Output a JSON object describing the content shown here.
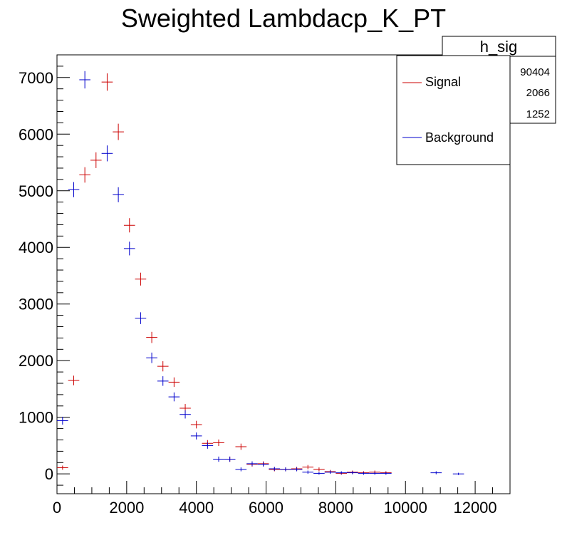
{
  "chart_data": {
    "type": "scatter",
    "title": "Sweighted Lambdacp_K_PT",
    "xlabel": "",
    "ylabel": "",
    "xlim": [
      0,
      13000
    ],
    "ylim": [
      -350,
      7400
    ],
    "x_ticks": [
      0,
      2000,
      4000,
      6000,
      8000,
      10000,
      12000
    ],
    "y_ticks": [
      0,
      1000,
      2000,
      3000,
      4000,
      5000,
      6000,
      7000
    ],
    "x_tick_labels": [
      "0",
      "2000",
      "4000",
      "6000",
      "8000",
      "10000",
      "12000"
    ],
    "y_tick_labels": [
      "0",
      "1000",
      "2000",
      "3000",
      "4000",
      "5000",
      "6000",
      "7000"
    ],
    "grid": false,
    "legend_position": "top-right",
    "colors": {
      "Signal": "#cc0000",
      "Background": "#0000cc"
    },
    "series": [
      {
        "name": "Signal",
        "half_width": 160,
        "points": [
          [
            160,
            110
          ],
          [
            480,
            1650
          ],
          [
            800,
            5280
          ],
          [
            1120,
            5540
          ],
          [
            1440,
            6920
          ],
          [
            1760,
            6040
          ],
          [
            2080,
            4390
          ],
          [
            2400,
            3440
          ],
          [
            2720,
            2410
          ],
          [
            3040,
            1900
          ],
          [
            3360,
            1620
          ],
          [
            3680,
            1160
          ],
          [
            4000,
            870
          ],
          [
            4320,
            540
          ],
          [
            4640,
            550
          ],
          [
            4960,
            260
          ],
          [
            5280,
            480
          ],
          [
            5600,
            170
          ],
          [
            5920,
            180
          ],
          [
            6240,
            80
          ],
          [
            6560,
            80
          ],
          [
            6880,
            90
          ],
          [
            7200,
            120
          ],
          [
            7520,
            80
          ],
          [
            7840,
            40
          ],
          [
            8160,
            10
          ],
          [
            8480,
            30
          ],
          [
            8800,
            20
          ],
          [
            9120,
            30
          ],
          [
            9440,
            20
          ]
        ]
      },
      {
        "name": "Background",
        "half_width": 160,
        "points": [
          [
            160,
            940
          ],
          [
            480,
            5020
          ],
          [
            800,
            6960
          ],
          [
            1440,
            5660
          ],
          [
            1760,
            4930
          ],
          [
            2080,
            3980
          ],
          [
            2400,
            2750
          ],
          [
            2720,
            2050
          ],
          [
            3040,
            1640
          ],
          [
            3360,
            1360
          ],
          [
            3680,
            1050
          ],
          [
            4000,
            670
          ],
          [
            4320,
            500
          ],
          [
            4640,
            260
          ],
          [
            4960,
            260
          ],
          [
            5280,
            80
          ],
          [
            5600,
            180
          ],
          [
            5920,
            170
          ],
          [
            6240,
            90
          ],
          [
            6560,
            80
          ],
          [
            6880,
            80
          ],
          [
            7200,
            30
          ],
          [
            7520,
            10
          ],
          [
            7840,
            30
          ],
          [
            8160,
            20
          ],
          [
            8480,
            20
          ],
          [
            8800,
            10
          ],
          [
            9120,
            10
          ],
          [
            9440,
            10
          ],
          [
            10880,
            20
          ],
          [
            11520,
            0
          ]
        ]
      }
    ]
  },
  "stats_box": {
    "title": "h_sig",
    "values": [
      "90404",
      "2066",
      "1252"
    ]
  },
  "legend": {
    "items": [
      {
        "label": "Signal",
        "color": "#cc0000"
      },
      {
        "label": "Background",
        "color": "#0000cc"
      }
    ]
  }
}
